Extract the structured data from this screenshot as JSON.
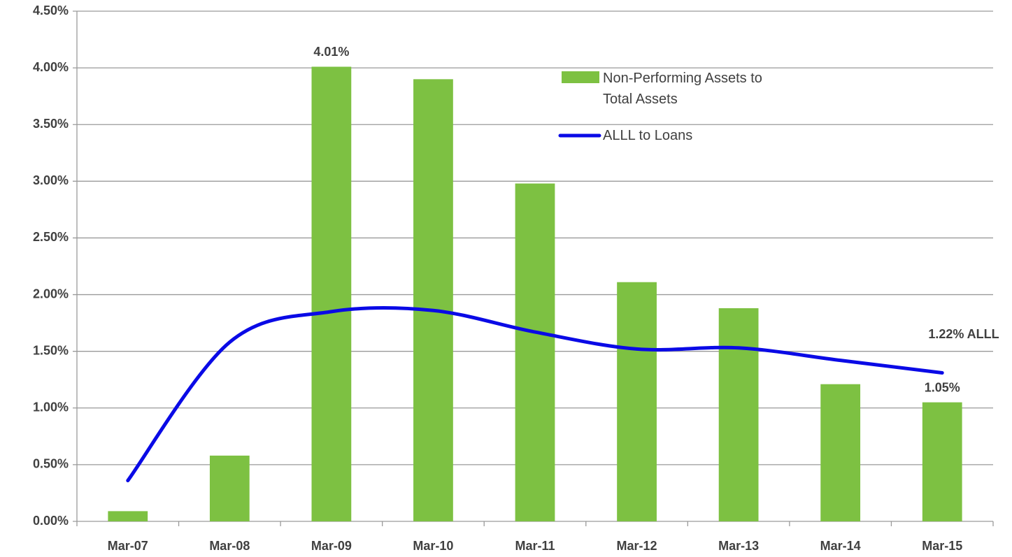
{
  "chart_data": {
    "type": "bar_line",
    "categories": [
      "Mar-07",
      "Mar-08",
      "Mar-09",
      "Mar-10",
      "Mar-11",
      "Mar-12",
      "Mar-13",
      "Mar-14",
      "Mar-15"
    ],
    "series": [
      {
        "name": "Non-Performing Assets to Total Assets",
        "type": "bar",
        "color": "#7dc142",
        "values": [
          0.09,
          0.58,
          4.01,
          3.9,
          2.98,
          2.11,
          1.88,
          1.21,
          1.05
        ],
        "value_labels": [
          null,
          null,
          "4.01%",
          null,
          null,
          null,
          null,
          null,
          "1.05%"
        ]
      },
      {
        "name": "ALLL to Loans",
        "type": "line",
        "color": "#0a0ae6",
        "values": [
          0.36,
          1.58,
          1.85,
          1.86,
          1.67,
          1.52,
          1.53,
          1.42,
          1.31
        ]
      }
    ],
    "annotations": [
      "1.22% ALLL"
    ],
    "ylim": [
      0,
      4.5
    ],
    "yticks": [
      {
        "value": 0,
        "label": "0.00%"
      },
      {
        "value": 0.5,
        "label": "0.50%"
      },
      {
        "value": 1,
        "label": "1.00%"
      },
      {
        "value": 1.5,
        "label": "1.50%"
      },
      {
        "value": 2,
        "label": "2.00%"
      },
      {
        "value": 2.5,
        "label": "2.50%"
      },
      {
        "value": 3,
        "label": "3.00%"
      },
      {
        "value": 3.5,
        "label": "3.50%"
      },
      {
        "value": 4,
        "label": "4.00%"
      },
      {
        "value": 4.5,
        "label": "4.50%"
      }
    ],
    "grid": true
  }
}
